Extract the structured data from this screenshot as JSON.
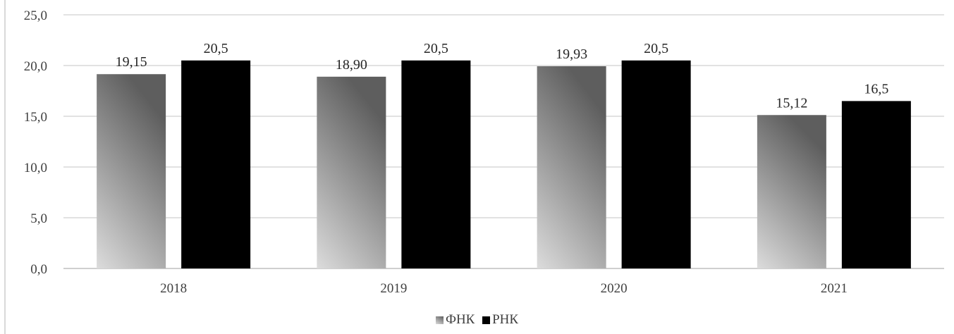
{
  "chart_data": {
    "type": "bar",
    "categories": [
      "2018",
      "2019",
      "2020",
      "2021"
    ],
    "series": [
      {
        "name": "ФНК",
        "values": [
          19.15,
          18.9,
          19.93,
          15.12
        ],
        "labels": [
          "19,15",
          "18,90",
          "19,93",
          "15,12"
        ],
        "color": "#8c8c8c"
      },
      {
        "name": "РНК",
        "values": [
          20.5,
          20.5,
          20.5,
          16.5
        ],
        "labels": [
          "20,5",
          "20,5",
          "20,5",
          "16,5"
        ],
        "color": "#000000"
      }
    ],
    "ylim": [
      0,
      25
    ],
    "yticks": [
      0,
      5,
      10,
      15,
      20,
      25
    ],
    "ytick_labels": [
      "0,0",
      "5,0",
      "10,0",
      "15,0",
      "20,0",
      "25,0"
    ],
    "title": "",
    "xlabel": "",
    "ylabel": "",
    "grid": true,
    "legend_position": "bottom"
  }
}
